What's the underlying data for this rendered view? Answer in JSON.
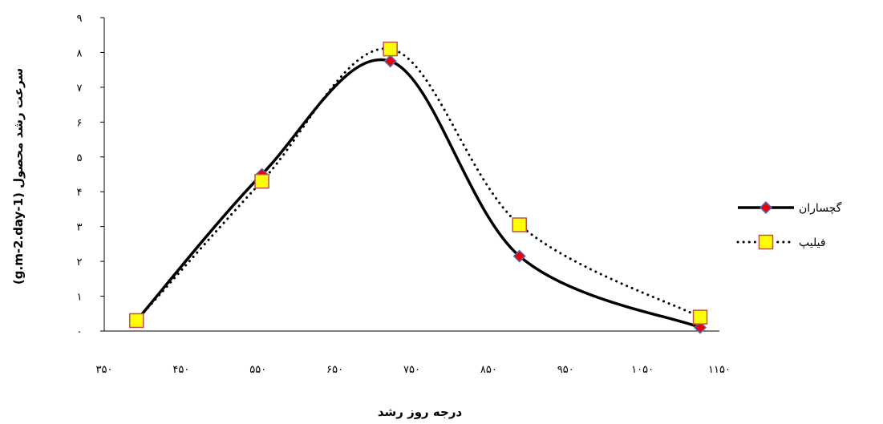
{
  "chart_data": {
    "type": "line",
    "title": "",
    "xlabel": "درجه روز رشد",
    "ylabel": "سرعت رشد محصول (g.m-2.day-1)",
    "xlim": [
      350,
      1150
    ],
    "ylim": [
      0,
      9
    ],
    "x_ticks": [
      350,
      450,
      550,
      650,
      750,
      850,
      950,
      1050,
      1150
    ],
    "x_tick_labels": [
      "۳۵۰",
      "۴۵۰",
      "۵۵۰",
      "۶۵۰",
      "۷۵۰",
      "۸۵۰",
      "۹۵۰",
      "۱۰۵۰",
      "۱۱۵۰"
    ],
    "y_ticks": [
      0,
      1,
      2,
      3,
      4,
      5,
      6,
      7,
      8,
      9
    ],
    "y_tick_labels": [
      "۰",
      "۱",
      "۲",
      "۳",
      "۴",
      "۵",
      "۶",
      "۷",
      "۸",
      "۹"
    ],
    "grid": false,
    "legend_position": "right",
    "series": [
      {
        "name": "گچساران",
        "style": "solid",
        "marker": "diamond",
        "line_color": "#000000",
        "marker_fill": "#e8000b",
        "marker_stroke": "#4f6fb5",
        "x": [
          392,
          555,
          722,
          890,
          1125
        ],
        "y": [
          0.3,
          4.5,
          7.75,
          2.15,
          0.1
        ]
      },
      {
        "name": "فیلیپ",
        "style": "dotted",
        "marker": "square",
        "line_color": "#000000",
        "marker_fill": "#ffff00",
        "marker_stroke": "#c0504d",
        "x": [
          392,
          555,
          722,
          890,
          1125
        ],
        "y": [
          0.3,
          4.3,
          8.1,
          3.05,
          0.4
        ]
      }
    ]
  }
}
